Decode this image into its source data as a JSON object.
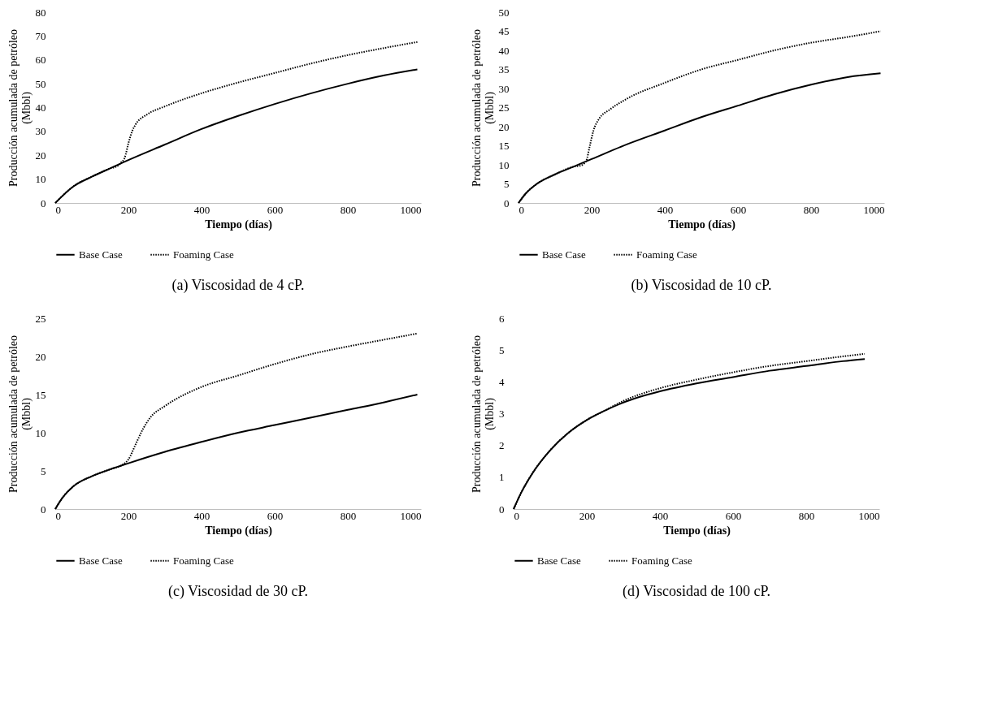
{
  "chart_data": [
    {
      "type": "line",
      "xlabel": "Tiempo (días)",
      "ylabel": "Producción acumulada de petróleo\n(Mbbl)",
      "xlim": [
        0,
        1000
      ],
      "xticks": [
        0,
        200,
        400,
        600,
        800,
        1000
      ],
      "ylim": [
        0,
        80
      ],
      "yticks": [
        0,
        10,
        20,
        30,
        40,
        50,
        60,
        70,
        80
      ],
      "grid": false,
      "legend": "bottom",
      "annotations": [
        "(a)  Viscosidad de 4 cP."
      ],
      "series": [
        {
          "name": "Base Case",
          "color": "#000000",
          "line_style": "solid",
          "x": [
            0,
            50,
            100,
            150,
            200,
            300,
            400,
            500,
            600,
            700,
            800,
            900,
            990
          ],
          "values": [
            0,
            7,
            11,
            14.5,
            18,
            24.5,
            31,
            36.5,
            41.5,
            46,
            50,
            53.5,
            56
          ]
        },
        {
          "name": "Foaming Case",
          "color": "#000000",
          "line_style": "dotted",
          "x": [
            0,
            50,
            100,
            150,
            170,
            180,
            190,
            200,
            210,
            220,
            250,
            300,
            400,
            500,
            600,
            700,
            800,
            900,
            990
          ],
          "values": [
            0,
            7,
            11,
            14.5,
            15.5,
            17,
            19,
            25,
            30,
            33,
            37,
            40.5,
            46,
            50.5,
            54.5,
            58.5,
            62,
            65,
            67.5
          ]
        }
      ]
    },
    {
      "type": "line",
      "xlabel": "Tiempo (días)",
      "ylabel": "Producción acumulada de petróleo\n(Mbbl)",
      "xlim": [
        0,
        1000
      ],
      "xticks": [
        0,
        200,
        400,
        600,
        800,
        1000
      ],
      "ylim": [
        0,
        50
      ],
      "yticks": [
        0,
        5,
        10,
        15,
        20,
        25,
        30,
        35,
        40,
        45,
        50
      ],
      "grid": false,
      "legend": "bottom",
      "annotations": [
        "(b)  Viscosidad de 10 cP."
      ],
      "series": [
        {
          "name": "Base Case",
          "color": "#000000",
          "line_style": "solid",
          "x": [
            0,
            20,
            50,
            100,
            150,
            200,
            300,
            400,
            500,
            600,
            700,
            800,
            900,
            990
          ],
          "values": [
            0,
            2.5,
            5,
            7.5,
            9.5,
            11.5,
            15.5,
            19,
            22.5,
            25.5,
            28.5,
            31,
            33,
            34
          ]
        },
        {
          "name": "Foaming Case",
          "color": "#000000",
          "line_style": "dotted",
          "x": [
            0,
            20,
            50,
            100,
            150,
            170,
            185,
            195,
            205,
            220,
            250,
            300,
            400,
            500,
            600,
            700,
            800,
            900,
            990
          ],
          "values": [
            0,
            2.5,
            5,
            7.5,
            9.5,
            9.8,
            11,
            15,
            19,
            22,
            24.5,
            27.5,
            31.5,
            35,
            37.5,
            40,
            42,
            43.5,
            45
          ]
        }
      ]
    },
    {
      "type": "line",
      "xlabel": "Tiempo (días)",
      "ylabel": "Producción acumulada de petróleo\n(Mbbl)",
      "xlim": [
        0,
        1000
      ],
      "xticks": [
        0,
        200,
        400,
        600,
        800,
        1000
      ],
      "ylim": [
        0,
        25
      ],
      "yticks": [
        0,
        5,
        10,
        15,
        20,
        25
      ],
      "grid": false,
      "legend": "bottom",
      "annotations": [
        "(c)  Viscosidad de 30 cP."
      ],
      "series": [
        {
          "name": "Base Case",
          "color": "#000000",
          "line_style": "solid",
          "x": [
            0,
            20,
            50,
            100,
            150,
            200,
            300,
            400,
            500,
            600,
            700,
            800,
            900,
            990
          ],
          "values": [
            0,
            1.5,
            3,
            4.3,
            5.2,
            6,
            7.5,
            8.8,
            10,
            11,
            12,
            13,
            14,
            15
          ]
        },
        {
          "name": "Foaming Case",
          "color": "#000000",
          "line_style": "dotted",
          "x": [
            0,
            20,
            50,
            100,
            150,
            180,
            200,
            220,
            240,
            260,
            300,
            400,
            500,
            600,
            700,
            800,
            900,
            990
          ],
          "values": [
            0,
            1.5,
            3,
            4.3,
            5.2,
            5.7,
            6.5,
            8.5,
            10.5,
            12,
            13.5,
            16,
            17.5,
            19,
            20.3,
            21.3,
            22.2,
            23
          ]
        }
      ]
    },
    {
      "type": "line",
      "xlabel": "Tiempo (días)",
      "ylabel": "Producción acumulada de petróleo\n(Mbbl)",
      "xlim": [
        0,
        1000
      ],
      "xticks": [
        0,
        200,
        400,
        600,
        800,
        1000
      ],
      "ylim": [
        0,
        6
      ],
      "yticks": [
        0,
        1,
        2,
        3,
        4,
        5,
        6
      ],
      "grid": false,
      "legend": "bottom",
      "annotations": [
        "(d)  Viscosidad de 100 cP."
      ],
      "series": [
        {
          "name": "Base Case",
          "color": "#000000",
          "line_style": "solid",
          "x": [
            0,
            20,
            50,
            100,
            150,
            200,
            250,
            300,
            400,
            500,
            600,
            700,
            800,
            900,
            960
          ],
          "values": [
            0,
            0.5,
            1.1,
            1.85,
            2.4,
            2.8,
            3.1,
            3.35,
            3.7,
            3.95,
            4.15,
            4.35,
            4.5,
            4.65,
            4.72
          ]
        },
        {
          "name": "Foaming Case",
          "color": "#000000",
          "line_style": "dotted",
          "x": [
            0,
            20,
            50,
            100,
            150,
            200,
            250,
            300,
            400,
            500,
            600,
            700,
            800,
            900,
            960
          ],
          "values": [
            0,
            0.5,
            1.1,
            1.85,
            2.4,
            2.8,
            3.1,
            3.4,
            3.8,
            4.07,
            4.3,
            4.5,
            4.65,
            4.8,
            4.88
          ]
        }
      ]
    }
  ]
}
